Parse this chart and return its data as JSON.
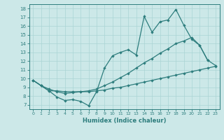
{
  "bg_color": "#cce8e8",
  "line_color": "#2d7d7d",
  "grid_color": "#aad4d4",
  "xlabel": "Humidex (Indice chaleur)",
  "xlim": [
    -0.5,
    23.5
  ],
  "ylim": [
    6.5,
    18.5
  ],
  "yticks": [
    7,
    8,
    9,
    10,
    11,
    12,
    13,
    14,
    15,
    16,
    17,
    18
  ],
  "xticks": [
    0,
    1,
    2,
    3,
    4,
    5,
    6,
    7,
    8,
    9,
    10,
    11,
    12,
    13,
    14,
    15,
    16,
    17,
    18,
    19,
    20,
    21,
    22,
    23
  ],
  "line1_x": [
    0,
    1,
    2,
    3,
    4,
    5,
    6,
    7,
    8,
    9,
    10,
    11,
    12,
    13,
    14,
    15,
    16,
    17,
    18,
    19,
    20,
    21,
    22
  ],
  "line1_y": [
    9.8,
    9.2,
    8.6,
    7.9,
    7.5,
    7.6,
    7.4,
    6.9,
    8.5,
    11.2,
    12.6,
    13.0,
    13.3,
    12.7,
    17.1,
    15.3,
    16.5,
    16.7,
    17.9,
    16.1,
    14.5,
    13.8,
    12.1
  ],
  "line2_x": [
    0,
    1,
    2,
    3,
    4,
    5,
    6,
    7,
    8,
    9,
    10,
    11,
    12,
    13,
    14,
    15,
    16,
    17,
    18,
    19,
    20,
    21,
    22,
    23
  ],
  "line2_y": [
    9.8,
    9.2,
    8.8,
    8.5,
    8.3,
    8.4,
    8.5,
    8.6,
    8.8,
    9.2,
    9.6,
    10.1,
    10.6,
    11.2,
    11.8,
    12.3,
    12.9,
    13.4,
    14.0,
    14.3,
    14.7,
    13.8,
    12.1,
    11.5
  ],
  "line3_x": [
    0,
    1,
    2,
    3,
    4,
    5,
    6,
    7,
    8,
    9,
    10,
    11,
    12,
    13,
    14,
    15,
    16,
    17,
    18,
    19,
    20,
    21,
    22,
    23
  ],
  "line3_y": [
    9.8,
    9.2,
    8.6,
    8.6,
    8.5,
    8.5,
    8.5,
    8.5,
    8.6,
    8.7,
    8.9,
    9.0,
    9.2,
    9.4,
    9.6,
    9.8,
    10.0,
    10.2,
    10.4,
    10.6,
    10.8,
    11.0,
    11.2,
    11.4
  ]
}
